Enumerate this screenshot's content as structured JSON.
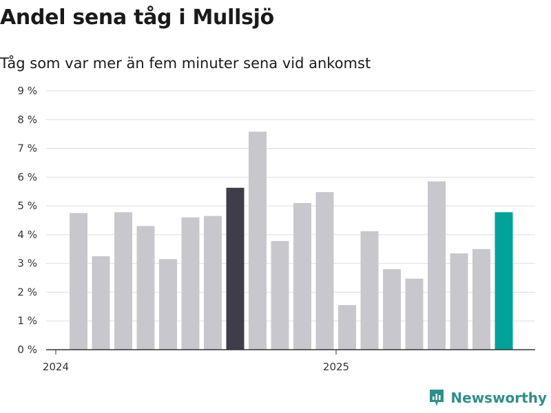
{
  "title": "Andel sena tåg i Mullsjö",
  "subtitle": "Tåg som var mer än fem minuter sena vid ankomst",
  "brand": {
    "name": "Newsworthy",
    "color": "#2f8f8a"
  },
  "colors": {
    "default": "#c8c7cd",
    "highlight_prev": "#3f3d4a",
    "highlight_latest": "#00a29a",
    "grid": "#dddddd",
    "axis": "#333333"
  },
  "chart_data": {
    "type": "bar",
    "title": "Andel sena tåg i Mullsjö",
    "subtitle": "Tåg som var mer än fem minuter sena vid ankomst",
    "xlabel": "",
    "ylabel": "",
    "ylim": [
      0,
      9
    ],
    "yticks": [
      0,
      1,
      2,
      3,
      4,
      5,
      6,
      7,
      8,
      9
    ],
    "ytick_suffix": " %",
    "x_ticks": [
      {
        "label": "2024",
        "at_index": 0
      },
      {
        "label": "2025",
        "at_index": 12
      }
    ],
    "categories": [
      "2024-01",
      "2024-02",
      "2024-03",
      "2024-04",
      "2024-05",
      "2024-06",
      "2024-07",
      "2024-08",
      "2024-09",
      "2024-10",
      "2024-11",
      "2024-12",
      "2025-01",
      "2025-02",
      "2025-03",
      "2025-04",
      "2025-05",
      "2025-06",
      "2025-07",
      "2025-08"
    ],
    "values": [
      4.75,
      3.25,
      4.78,
      4.3,
      3.15,
      4.6,
      4.65,
      5.63,
      7.58,
      3.78,
      5.1,
      5.48,
      1.55,
      4.12,
      2.8,
      2.47,
      5.85,
      3.35,
      3.5,
      4.78
    ],
    "highlights": {
      "7": "highlight_prev",
      "19": "highlight_latest"
    },
    "grid": true
  }
}
